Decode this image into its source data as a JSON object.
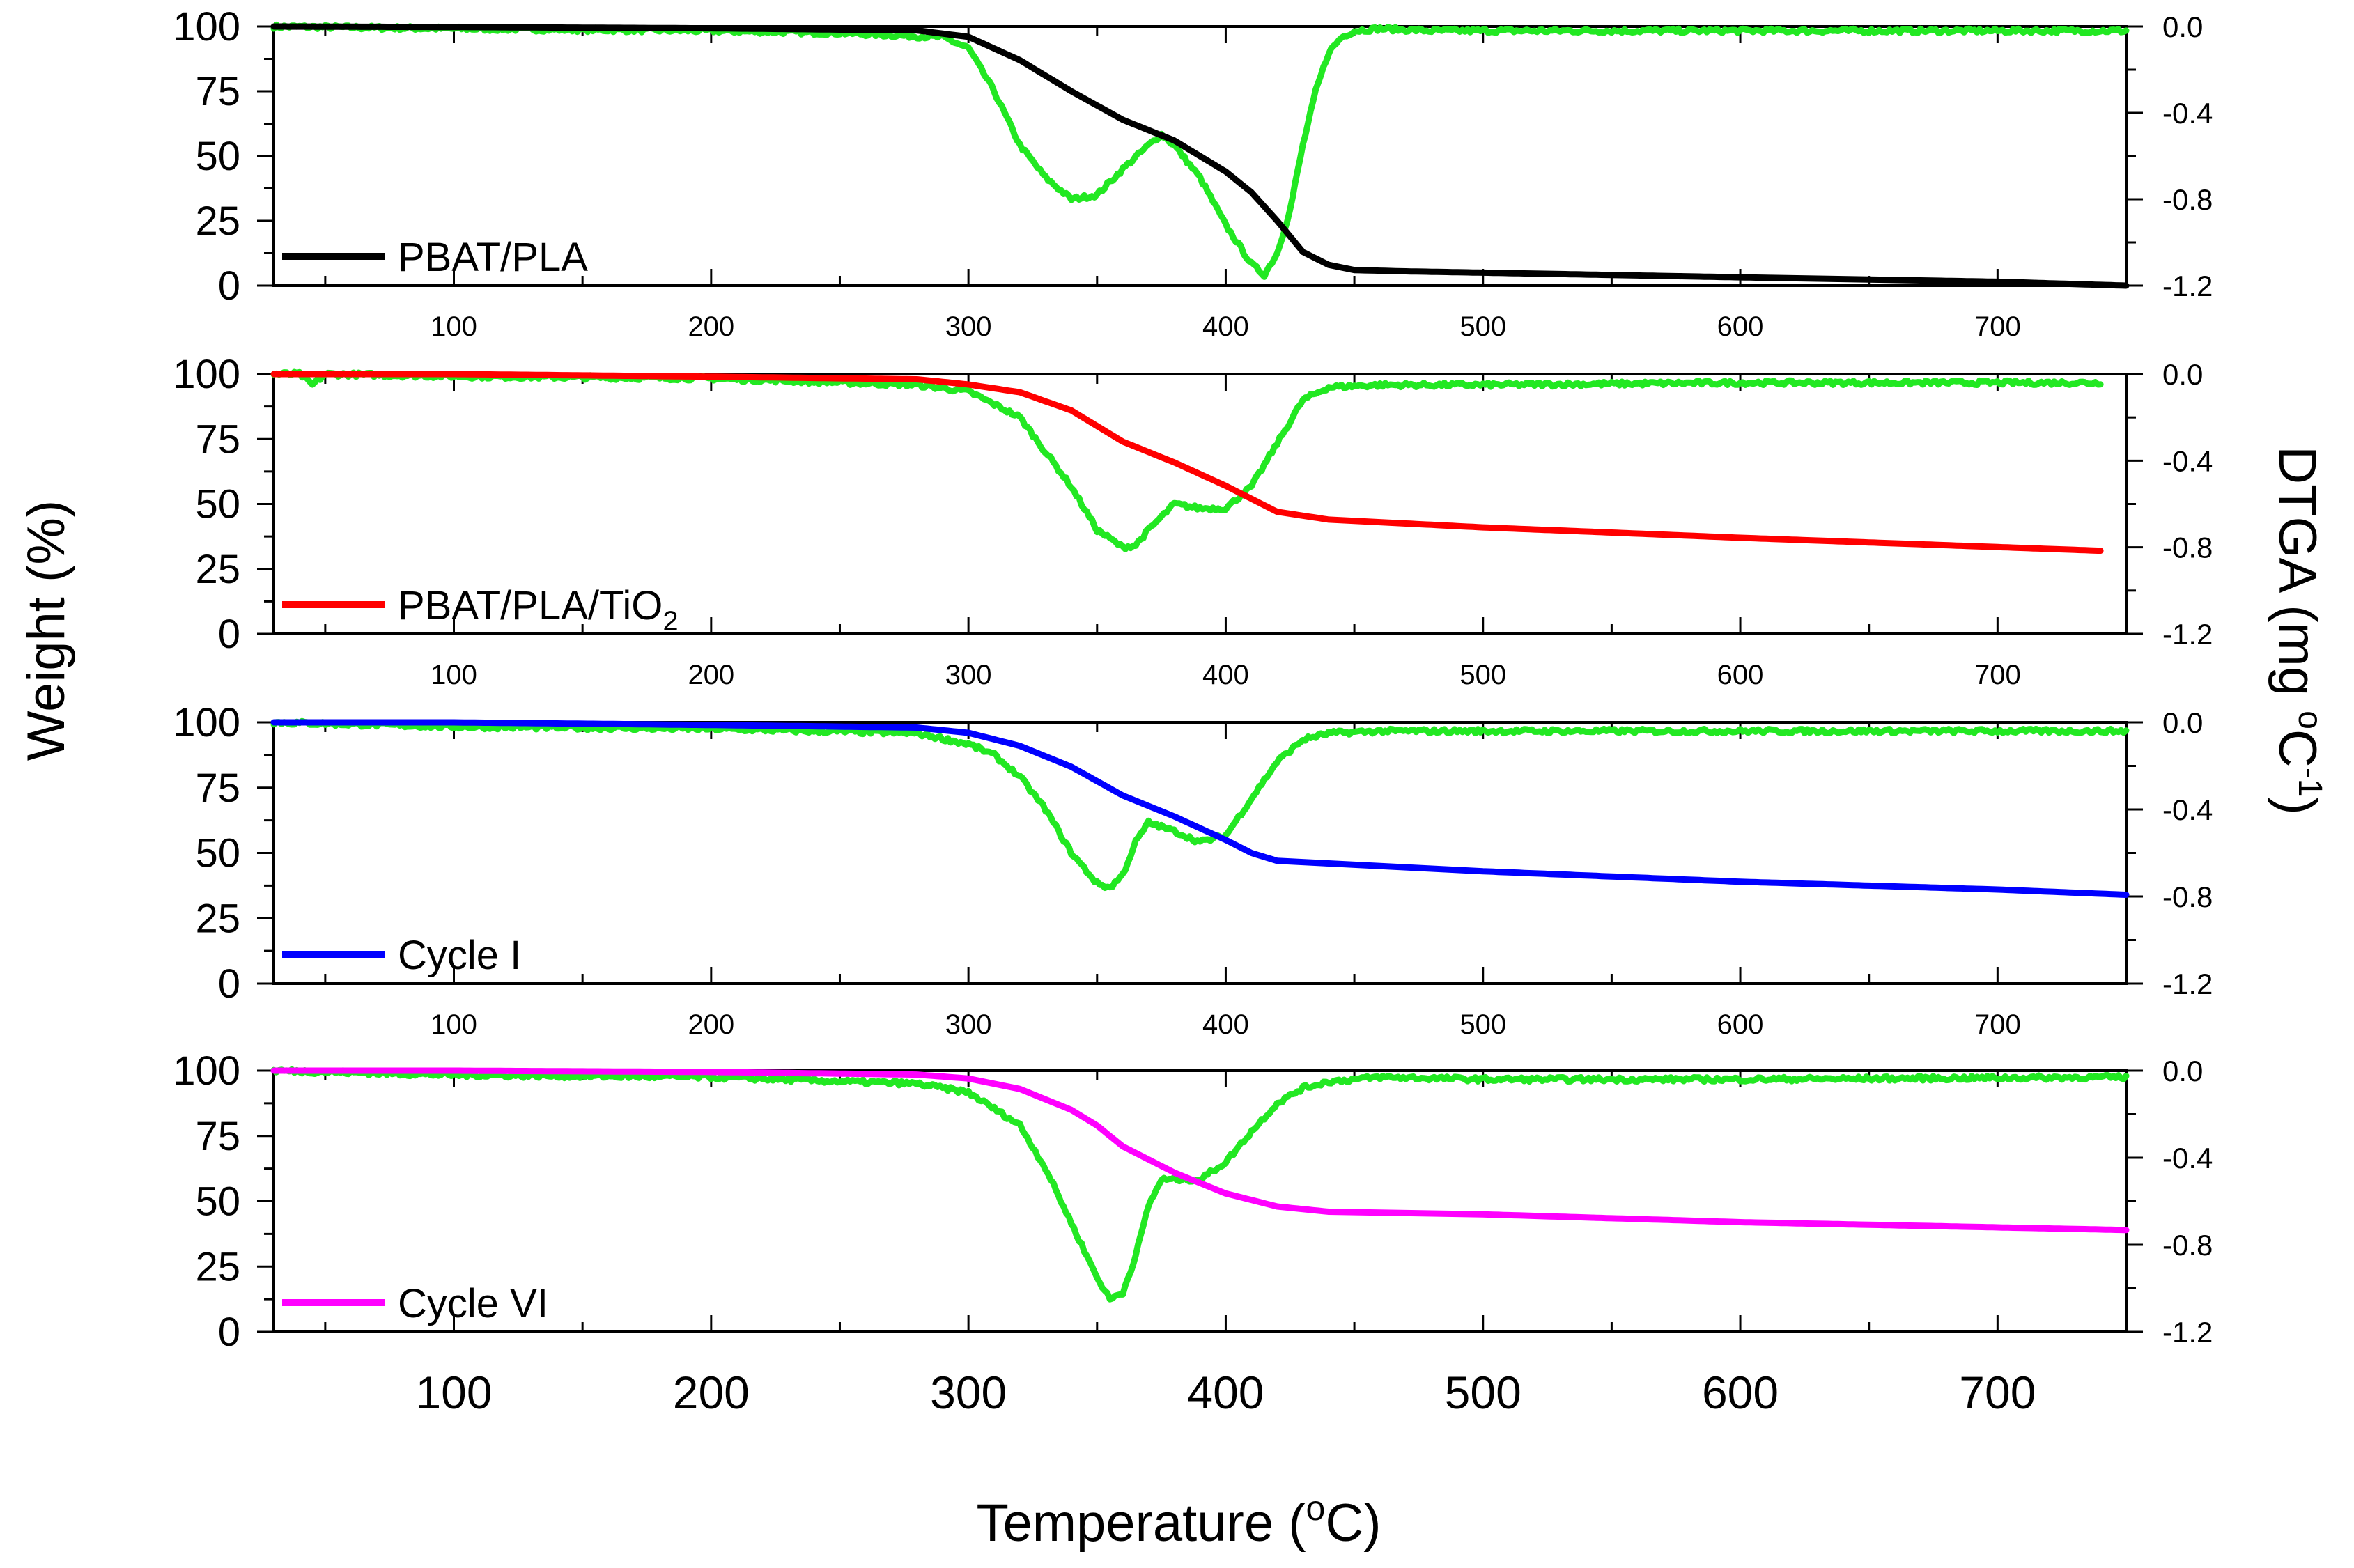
{
  "chart_data": {
    "type": "line",
    "xlabel": "Temperature (°C)",
    "xlabel_parts": {
      "main": "Temperature (",
      "sup": "o",
      "end": "C)"
    },
    "ylabel_left": "Weight (%)",
    "ylabel_right": "DTGA (mg °C⁻¹)",
    "ylabel_right_parts": {
      "main": "DTGA (mg ",
      "sup1": "o",
      "mid": "C",
      "sup2": "-1",
      "end": ")"
    },
    "xlim": [
      30,
      750
    ],
    "x_ticks": [
      100,
      200,
      300,
      400,
      500,
      600,
      700
    ],
    "ylim_left": [
      0,
      100
    ],
    "y_ticks_left": [
      0,
      25,
      50,
      75,
      100
    ],
    "ylim_right": [
      -1.2,
      0.0
    ],
    "y_ticks_right": [
      "0.0",
      "-0.4",
      "-0.8",
      "-1.2"
    ],
    "panels": [
      {
        "legend": "PBAT/PLA",
        "legend_sub": "",
        "color": "#000000",
        "dtga_color": "#22e822",
        "weight": {
          "x": [
            30,
            100,
            200,
            280,
            300,
            320,
            340,
            360,
            380,
            400,
            410,
            420,
            430,
            440,
            450,
            470,
            500,
            600,
            700,
            750
          ],
          "y": [
            100,
            99.8,
            99.3,
            98.5,
            96,
            87,
            75,
            64,
            56,
            44,
            36,
            25,
            13,
            8,
            6,
            5.5,
            5,
            3.2,
            1.5,
            0
          ]
        },
        "dtga": {
          "x": [
            30,
            100,
            200,
            250,
            290,
            300,
            310,
            320,
            330,
            340,
            350,
            360,
            370,
            375,
            380,
            390,
            400,
            410,
            415,
            420,
            425,
            430,
            435,
            440,
            445,
            450,
            460,
            480,
            500,
            600,
            700,
            750
          ],
          "y": [
            0.0,
            -0.01,
            -0.02,
            -0.03,
            -0.05,
            -0.1,
            -0.3,
            -0.55,
            -0.7,
            -0.8,
            -0.78,
            -0.66,
            -0.55,
            -0.5,
            -0.55,
            -0.7,
            -0.92,
            -1.1,
            -1.15,
            -1.05,
            -0.85,
            -0.55,
            -0.3,
            -0.12,
            -0.05,
            -0.02,
            -0.01,
            -0.02,
            -0.02,
            -0.02,
            -0.02,
            -0.02
          ]
        }
      },
      {
        "legend": "PBAT/PLA/TiO",
        "legend_sub": "2",
        "color": "#ff0000",
        "dtga_color": "#22e822",
        "weight": {
          "x": [
            30,
            100,
            200,
            280,
            300,
            320,
            340,
            360,
            380,
            400,
            420,
            440,
            500,
            600,
            740
          ],
          "y": [
            100,
            100,
            99,
            98,
            96,
            93,
            86,
            74,
            66,
            57,
            47,
            44,
            41,
            37,
            32
          ]
        },
        "dtga": {
          "x": [
            30,
            40,
            45,
            50,
            100,
            200,
            280,
            300,
            320,
            340,
            350,
            360,
            365,
            370,
            380,
            390,
            400,
            410,
            420,
            430,
            440,
            460,
            500,
            600,
            740
          ],
          "y": [
            0.0,
            0.0,
            -0.05,
            0.0,
            -0.01,
            -0.02,
            -0.05,
            -0.08,
            -0.2,
            -0.52,
            -0.72,
            -0.8,
            -0.79,
            -0.72,
            -0.6,
            -0.62,
            -0.62,
            -0.52,
            -0.32,
            -0.12,
            -0.06,
            -0.05,
            -0.05,
            -0.04,
            -0.04
          ]
        }
      },
      {
        "legend": "Cycle I",
        "legend_sub": "",
        "color": "#0000ff",
        "dtga_color": "#22e822",
        "weight": {
          "x": [
            30,
            100,
            200,
            280,
            300,
            320,
            340,
            360,
            380,
            400,
            410,
            420,
            440,
            500,
            600,
            700,
            750
          ],
          "y": [
            100,
            100,
            99,
            98,
            96,
            91,
            83,
            72,
            64,
            55,
            50,
            47,
            46,
            43,
            39,
            36,
            34
          ]
        },
        "dtga": {
          "x": [
            30,
            100,
            200,
            280,
            300,
            310,
            320,
            330,
            340,
            350,
            355,
            360,
            365,
            370,
            380,
            390,
            400,
            410,
            420,
            430,
            440,
            460,
            500,
            600,
            700,
            750
          ],
          "y": [
            0.0,
            -0.02,
            -0.03,
            -0.05,
            -0.1,
            -0.15,
            -0.25,
            -0.4,
            -0.6,
            -0.74,
            -0.76,
            -0.7,
            -0.55,
            -0.46,
            -0.5,
            -0.55,
            -0.52,
            -0.35,
            -0.18,
            -0.08,
            -0.05,
            -0.04,
            -0.04,
            -0.04,
            -0.04,
            -0.04
          ]
        }
      },
      {
        "legend": "Cycle VI",
        "legend_sub": "",
        "color": "#ff00ff",
        "dtga_color": "#22e822",
        "weight": {
          "x": [
            30,
            100,
            200,
            280,
            300,
            320,
            340,
            350,
            360,
            380,
            400,
            420,
            440,
            500,
            600,
            700,
            750
          ],
          "y": [
            100,
            100,
            99.5,
            98.5,
            97,
            93,
            85,
            79,
            71,
            61,
            53,
            48,
            46,
            45,
            42,
            40,
            39
          ]
        },
        "dtga": {
          "x": [
            30,
            100,
            200,
            280,
            300,
            320,
            330,
            340,
            350,
            355,
            360,
            365,
            370,
            375,
            380,
            390,
            400,
            410,
            420,
            430,
            440,
            460,
            500,
            600,
            750
          ],
          "y": [
            0.0,
            -0.02,
            -0.03,
            -0.06,
            -0.1,
            -0.25,
            -0.45,
            -0.7,
            -0.95,
            -1.05,
            -1.02,
            -0.85,
            -0.62,
            -0.5,
            -0.5,
            -0.5,
            -0.42,
            -0.28,
            -0.15,
            -0.08,
            -0.05,
            -0.03,
            -0.04,
            -0.04,
            -0.03
          ]
        }
      }
    ]
  }
}
